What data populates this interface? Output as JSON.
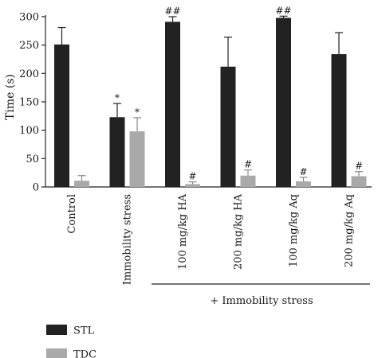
{
  "chart_data": {
    "type": "bar",
    "ylabel": "Time (s)",
    "ylim": [
      0,
      300
    ],
    "yticks": [
      0,
      50,
      100,
      150,
      200,
      250,
      300
    ],
    "categories": [
      "Control",
      "Immobility stress",
      "100 mg/kg HA",
      "200 mg/kg HA",
      "100 mg/kg Aq",
      "200 mg/kg Aq"
    ],
    "series": [
      {
        "name": "STL",
        "color": "#222222",
        "values": [
          251,
          123,
          291,
          212,
          298,
          234
        ],
        "errors": [
          30,
          24,
          9,
          52,
          3,
          38
        ],
        "annotations": [
          "",
          "*",
          "##",
          "",
          "##",
          ""
        ]
      },
      {
        "name": "TDC",
        "color": "#a9a9a9",
        "values": [
          11,
          98,
          5,
          20,
          10,
          19
        ],
        "errors": [
          9,
          24,
          4,
          10,
          7,
          8
        ],
        "annotations": [
          "",
          "*",
          "#",
          "#",
          "#",
          "#"
        ]
      }
    ],
    "group_label": "+ Immobility stress",
    "legend_position": "bottom-left"
  }
}
